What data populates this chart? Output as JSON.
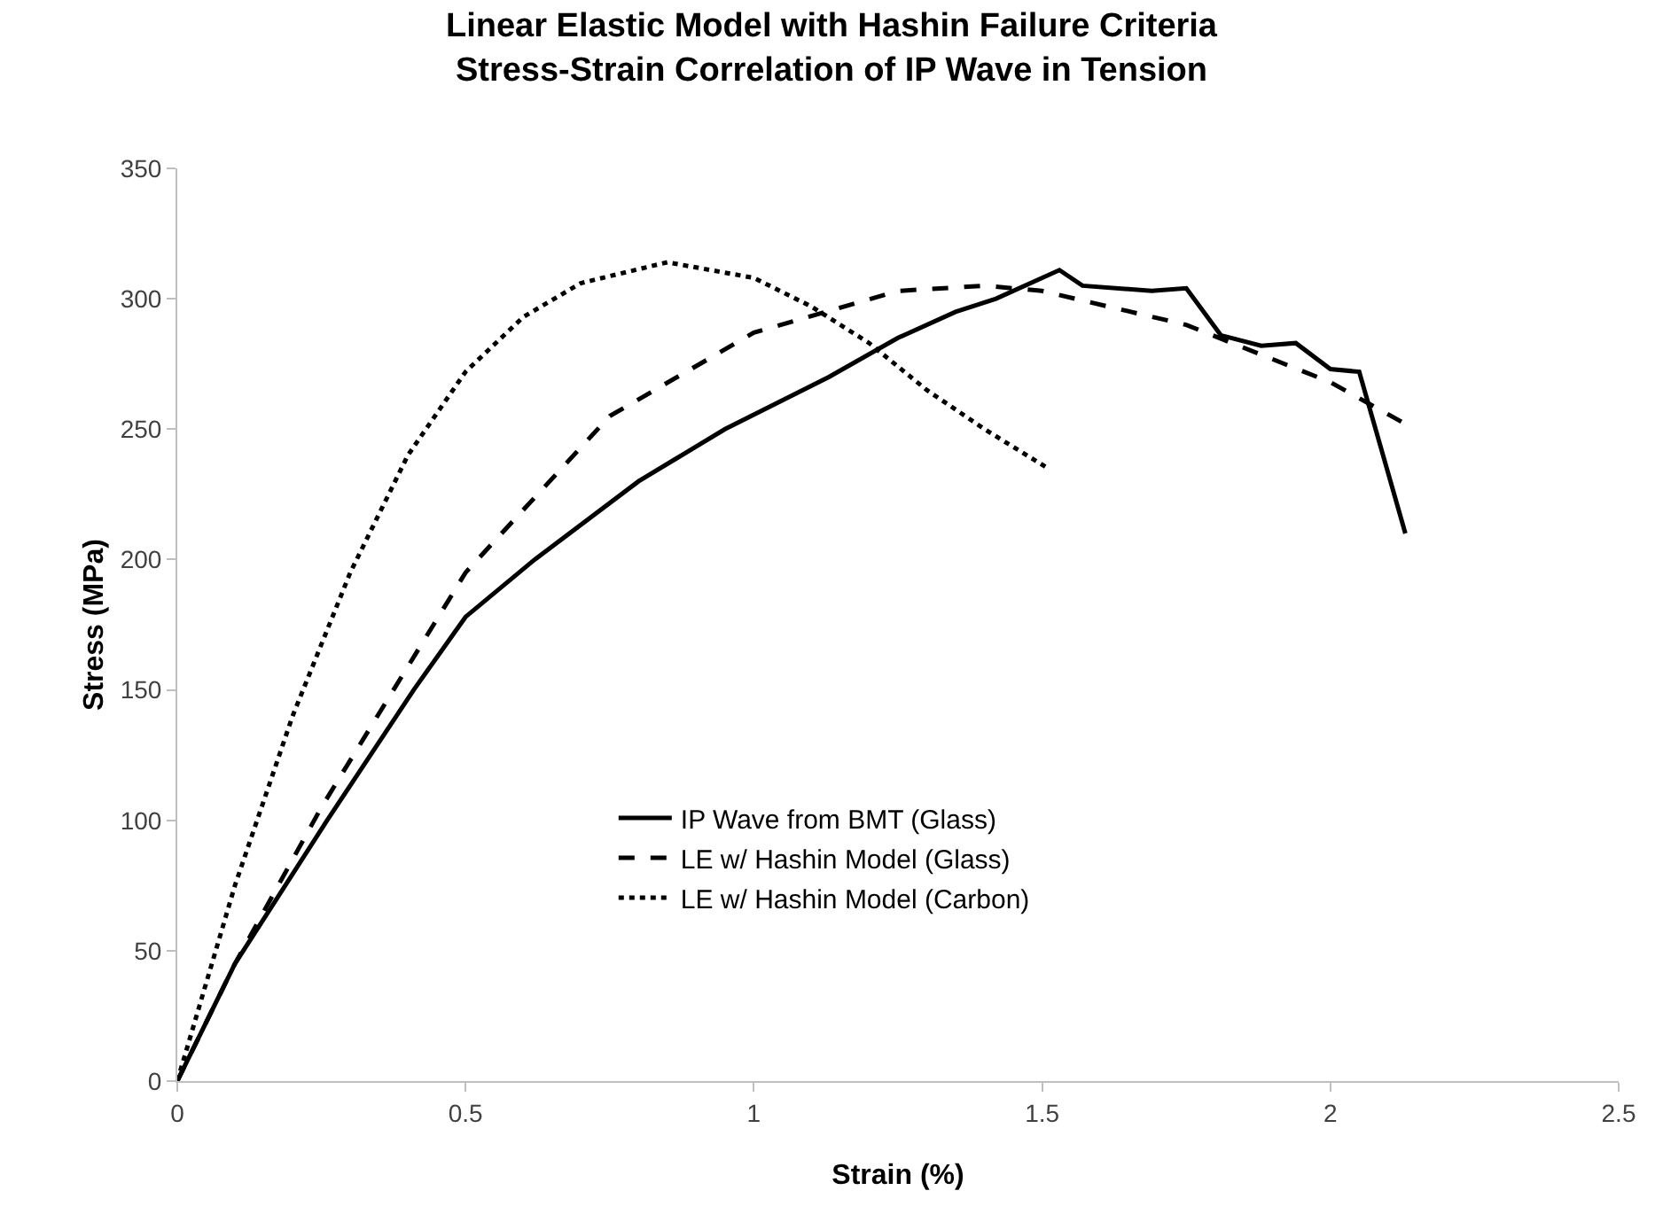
{
  "chart_data": {
    "type": "line",
    "title": "Linear Elastic Model with Hashin Failure Criteria Stress-Strain Correlation of IP Wave in Tension",
    "xlabel": "Strain (%)",
    "ylabel": "Stress (MPa)",
    "xlim": [
      0,
      2.5
    ],
    "xticks": [
      0,
      0.5,
      1,
      1.5,
      2,
      2.5
    ],
    "ylim": [
      0,
      350
    ],
    "yticks": [
      0,
      50,
      100,
      150,
      200,
      250,
      300,
      350
    ],
    "grid": false,
    "legend": "bottom",
    "marker": "none",
    "series": [
      {
        "name": "IP Wave from BMT (Glass)",
        "color": "#000000",
        "line_style": "solid",
        "x": [
          0,
          0.1,
          0.26,
          0.41,
          0.5,
          0.62,
          0.8,
          0.95,
          1.13,
          1.25,
          1.35,
          1.42,
          1.53,
          1.57,
          1.69,
          1.75,
          1.81,
          1.88,
          1.94,
          2.0,
          2.05,
          2.13
        ],
        "values": [
          0,
          45,
          100,
          150,
          178,
          200,
          230,
          250,
          270,
          285,
          295,
          300,
          311,
          305,
          303,
          304,
          286,
          282,
          283,
          273,
          272,
          210
        ]
      },
      {
        "name": "LE w/ Hashin Model (Glass)",
        "color": "#000000",
        "line_style": "dashed",
        "x": [
          0,
          0.1,
          0.25,
          0.5,
          0.75,
          1.0,
          1.25,
          1.4,
          1.5,
          1.75,
          2.0,
          2.13
        ],
        "values": [
          0,
          45,
          105,
          195,
          255,
          287,
          303,
          305,
          303,
          290,
          268,
          252
        ]
      },
      {
        "name": "LE w/ Hashin Model (Carbon)",
        "color": "#000000",
        "line_style": "dotted",
        "x": [
          0,
          0.1,
          0.2,
          0.3,
          0.4,
          0.5,
          0.6,
          0.7,
          0.85,
          1.0,
          1.1,
          1.2,
          1.3,
          1.4,
          1.51
        ],
        "values": [
          0,
          75,
          140,
          195,
          240,
          272,
          293,
          306,
          314,
          308,
          297,
          283,
          265,
          250,
          235
        ]
      }
    ]
  }
}
